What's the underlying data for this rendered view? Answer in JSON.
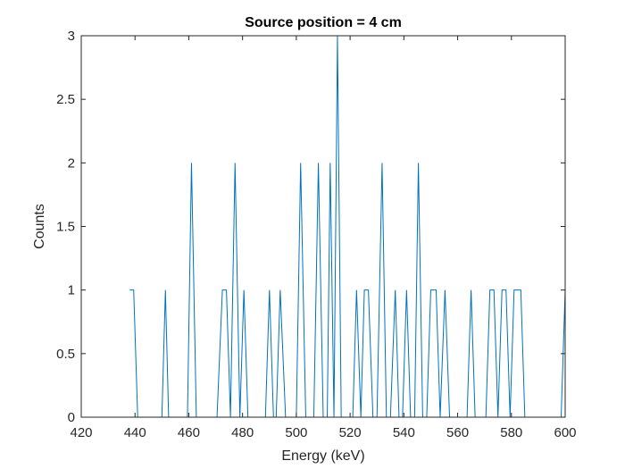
{
  "chart_data": {
    "type": "line",
    "title": "Source position = 4 cm",
    "xlabel": "Energy (keV)",
    "ylabel": "Counts",
    "xlim": [
      420,
      600
    ],
    "ylim": [
      0,
      3
    ],
    "xticks": [
      420,
      440,
      460,
      480,
      500,
      520,
      540,
      560,
      580,
      600
    ],
    "yticks": [
      0,
      0.5,
      1,
      1.5,
      2,
      2.5,
      3
    ],
    "xtick_labels": [
      "420",
      "440",
      "460",
      "480",
      "500",
      "520",
      "540",
      "560",
      "580",
      "600"
    ],
    "ytick_labels": [
      "0",
      "0.5",
      "1",
      "1.5",
      "2",
      "2.5",
      "3"
    ],
    "grid": false,
    "line_color": "#0072BD",
    "x": [
      438,
      439.5,
      441,
      450,
      451.3,
      452.5,
      459.5,
      461,
      462.8,
      470.5,
      472.5,
      474,
      475.5,
      477.2,
      479,
      480.5,
      482,
      488.5,
      490,
      491.5,
      492.5,
      494,
      496,
      500,
      501.6,
      503.5,
      506.5,
      508.2,
      510,
      511.5,
      512.6,
      514,
      515.3,
      516.7,
      518.7,
      521,
      522.4,
      524,
      525.3,
      526.8,
      528.5,
      530,
      531.9,
      533.5,
      535,
      536.8,
      538.2,
      539.5,
      541,
      542.5,
      544,
      545.4,
      547,
      548.5,
      550,
      552,
      553.5,
      555.3,
      557,
      563.5,
      565,
      566.5,
      570.5,
      572,
      573.5,
      575,
      576.5,
      578,
      579.5,
      581,
      583.5,
      585,
      598.5,
      600
    ],
    "y": [
      1,
      1,
      0,
      0,
      1,
      0,
      0,
      2,
      0,
      0,
      1,
      1,
      0,
      2,
      0,
      1,
      0,
      0,
      1,
      0,
      0,
      1,
      0,
      0,
      2,
      0,
      0,
      2,
      0,
      0,
      2,
      0,
      3,
      0,
      0,
      0,
      1,
      0,
      1,
      1,
      0,
      0,
      2,
      0,
      0,
      1,
      0,
      0,
      1,
      0,
      0,
      2,
      0,
      0,
      1,
      1,
      0,
      1,
      0,
      0,
      1,
      0,
      0,
      1,
      1,
      0,
      1,
      1,
      0,
      1,
      1,
      0,
      0,
      1
    ]
  }
}
